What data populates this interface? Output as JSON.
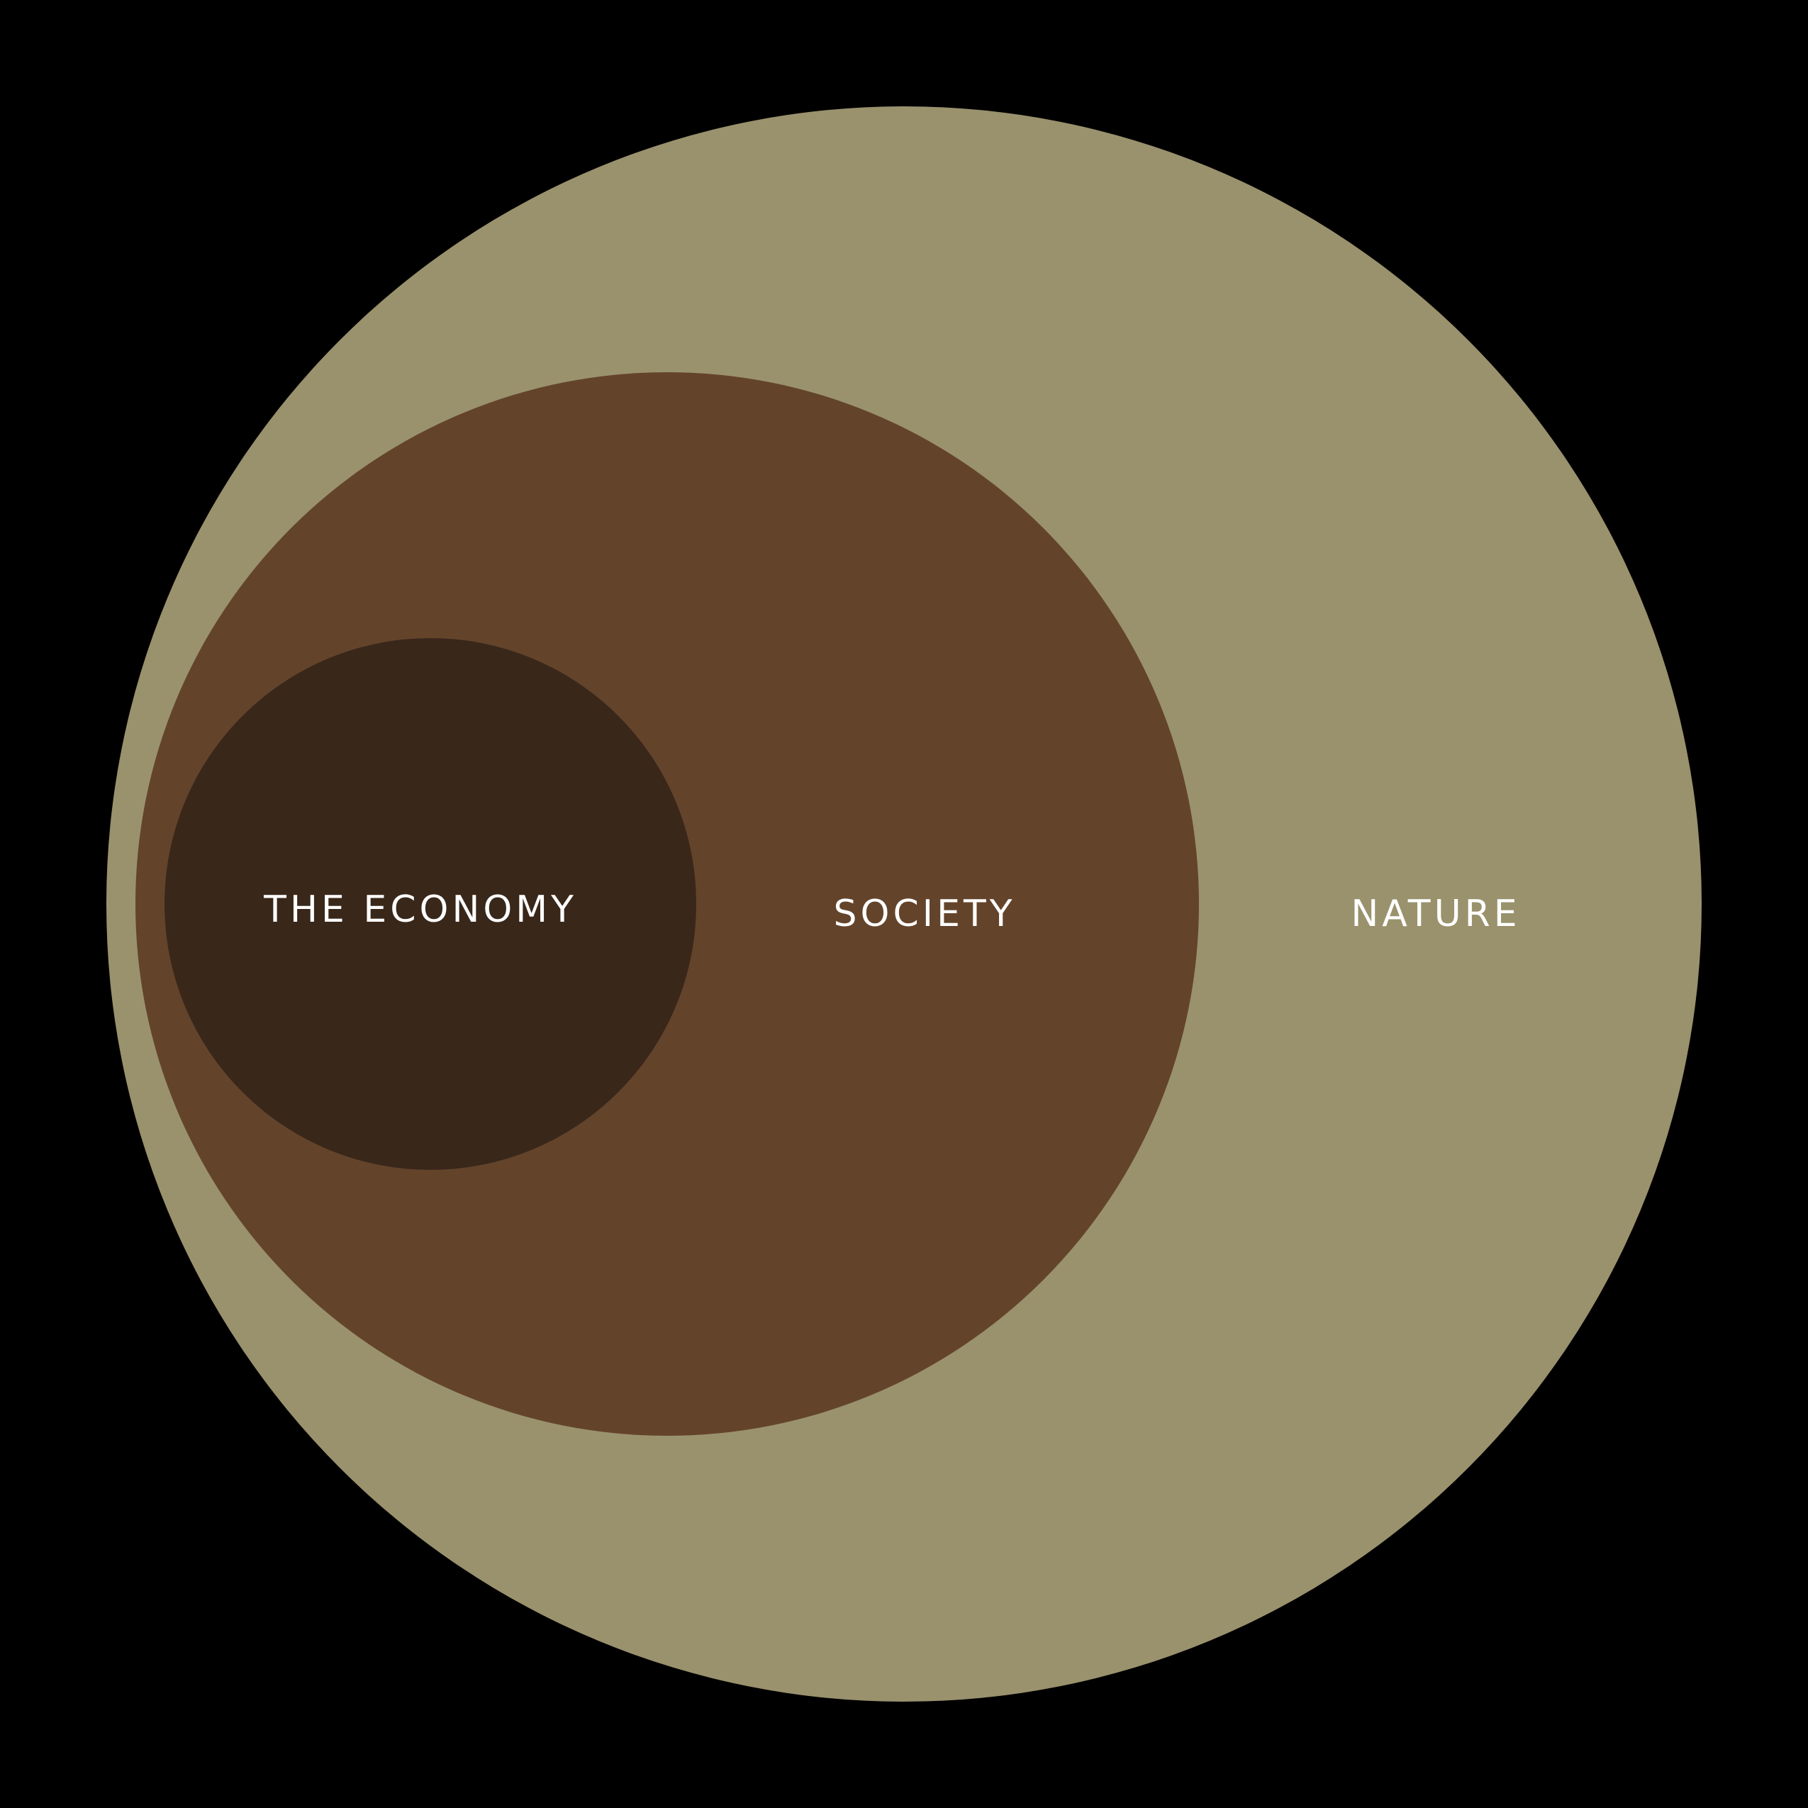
{
  "background": "#000000",
  "rings": [
    {
      "id": "nature",
      "label": "NATURE",
      "color": "#9a926d"
    },
    {
      "id": "society",
      "label": "SOCIETY",
      "color": "#63442b"
    },
    {
      "id": "economy",
      "label": "THE ECONOMY",
      "color": "#39271a"
    }
  ],
  "label_color": "#ffffff"
}
